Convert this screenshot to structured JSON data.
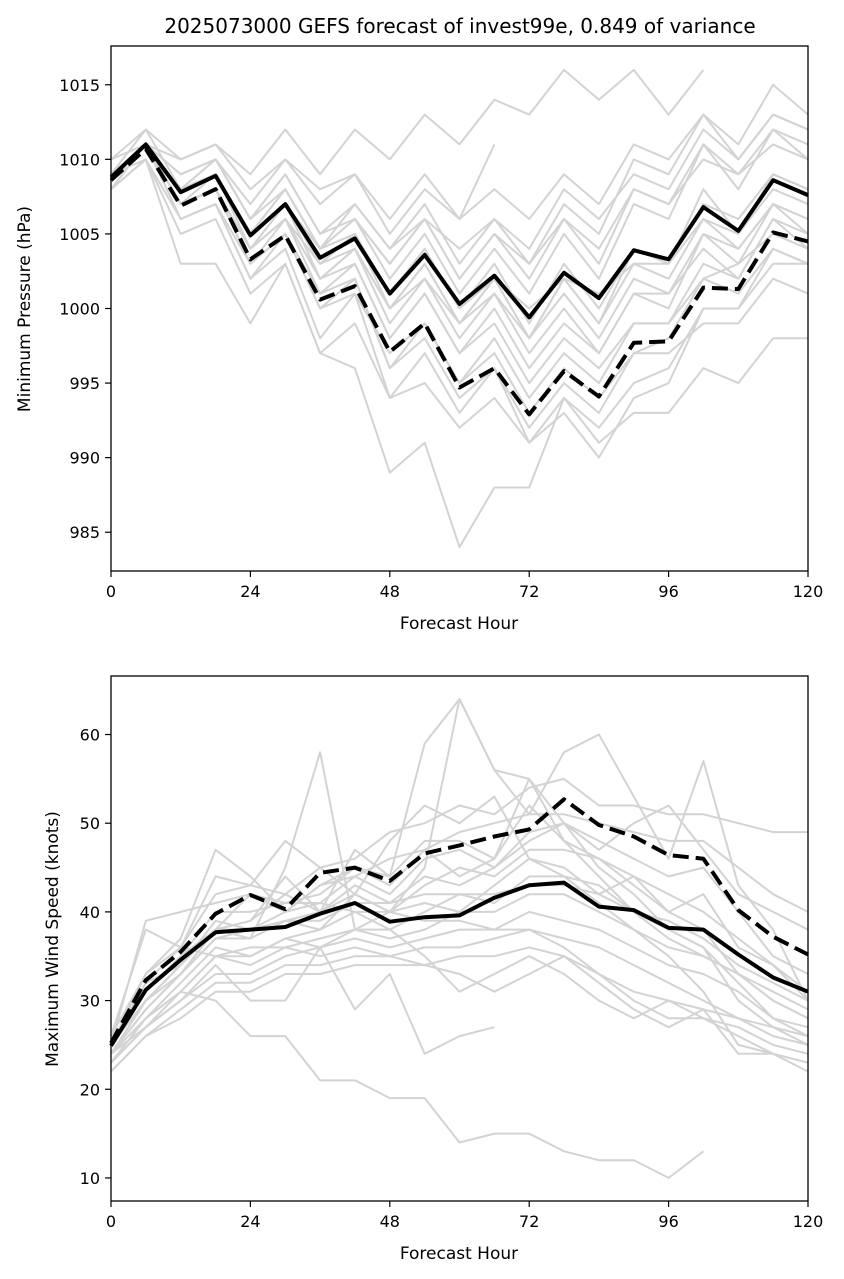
{
  "title": "2025073000 GEFS forecast of invest99e, 0.849 of variance",
  "chart_data": [
    {
      "type": "line",
      "id": "pressure",
      "xlabel": "Forecast Hour",
      "ylabel": "Minimum Pressure (hPa)",
      "xlim": [
        0,
        120
      ],
      "ylim": [
        982.4,
        1017.6
      ],
      "xticks": [
        0,
        24,
        48,
        72,
        96,
        120
      ],
      "yticks": [
        985,
        990,
        995,
        1000,
        1005,
        1010,
        1015
      ],
      "grid": false,
      "x": [
        0,
        6,
        12,
        18,
        24,
        30,
        36,
        42,
        48,
        54,
        60,
        66,
        72,
        78,
        84,
        90,
        96,
        102,
        108,
        114,
        120
      ],
      "ensemble_color": "#d3d3d3",
      "members": [
        [
          1010,
          1012,
          1010,
          1011,
          1009,
          1012,
          1009,
          1012,
          1010,
          1013,
          1011,
          1014,
          1013,
          1016,
          1014,
          1016,
          1013,
          1016
        ],
        [
          1009,
          1011,
          1009,
          1010,
          1007,
          1010,
          1007,
          1009,
          1006,
          1009,
          1006,
          1011
        ],
        [
          1010,
          1011,
          1010,
          1011,
          1008,
          1010,
          1008,
          1009,
          1005,
          1008,
          1006,
          1008,
          1006,
          1009,
          1007,
          1011,
          1010,
          1013,
          1011,
          1015,
          1013
        ],
        [
          1009,
          1012,
          1008,
          1010,
          1006,
          1009,
          1005,
          1006,
          1003,
          1006,
          1002,
          1005,
          1003,
          1007,
          1005,
          1010,
          1009,
          1013,
          1010,
          1013,
          1012
        ],
        [
          1009,
          1011,
          1008,
          1009,
          1005,
          1008,
          1004,
          1006,
          1002,
          1005,
          1001,
          1004,
          1001,
          1005,
          1002,
          1007,
          1006,
          1011,
          1008,
          1012,
          1010
        ],
        [
          1009,
          1011,
          1007,
          1008,
          1004,
          1007,
          1002,
          1004,
          1000,
          1003,
          999,
          1002,
          998,
          1002,
          999,
          1004,
          1003,
          1008,
          1005,
          1009,
          1008
        ],
        [
          1009,
          1011,
          1007,
          1008,
          1003,
          1006,
          1001,
          1003,
          998,
          1001,
          997,
          1000,
          996,
          999,
          997,
          1001,
          1000,
          1005,
          1003,
          1007,
          1005
        ],
        [
          1008,
          1011,
          1006,
          1007,
          1002,
          1005,
          1000,
          1002,
          996,
          999,
          995,
          998,
          994,
          997,
          995,
          999,
          999,
          1003,
          1002,
          1006,
          1004
        ],
        [
          1008,
          1010,
          1006,
          1007,
          1002,
          1004,
          998,
          1001,
          994,
          997,
          993,
          996,
          992,
          995,
          993,
          997,
          998,
          1002,
          1003,
          1005,
          1004
        ],
        [
          1008,
          1010,
          1005,
          1006,
          1001,
          1003,
          997,
          999,
          994,
          995,
          992,
          994,
          991,
          993,
          990,
          994,
          995,
          1000,
          1000,
          1004,
          1003
        ],
        [
          1009,
          1010,
          1003,
          1003,
          999,
          1003,
          997,
          996,
          989,
          991,
          984,
          988,
          988,
          994,
          991,
          993,
          993,
          996,
          995,
          998,
          998
        ],
        [
          1009,
          1011,
          1008,
          1009,
          1004,
          1007,
          1003,
          1005,
          1001,
          1004,
          1000,
          1003,
          999,
          1003,
          1000,
          1004,
          1003,
          1006,
          1004,
          1007,
          1006
        ],
        [
          1009,
          1011,
          1008,
          1009,
          1005,
          1007,
          1004,
          1005,
          1001,
          1004,
          1000,
          1002,
          1000,
          1002,
          1001,
          1003,
          1003,
          1007,
          1006,
          1009,
          1008
        ],
        [
          1009,
          1011,
          1007,
          1008,
          1004,
          1006,
          1002,
          1004,
          999,
          1002,
          998,
          1001,
          997,
          1000,
          997,
          1001,
          1001,
          1004,
          1002,
          1006,
          1005
        ],
        [
          1009,
          1011,
          1007,
          1008,
          1004,
          1006,
          1002,
          1003,
          998,
          1001,
          997,
          999,
          995,
          998,
          996,
          999,
          999,
          1002,
          1001,
          1004,
          1003
        ],
        [
          1008,
          1011,
          1006,
          1007,
          1003,
          1005,
          1000,
          1001,
          997,
          999,
          995,
          997,
          993,
          996,
          994,
          997,
          997,
          999,
          999,
          1002,
          1001
        ],
        [
          1009,
          1011,
          1007,
          1008,
          1003,
          1005,
          1001,
          1002,
          996,
          998,
          994,
          996,
          991,
          994,
          992,
          995,
          996,
          1000,
          1000,
          1003,
          1003
        ],
        [
          1009,
          1011,
          1008,
          1009,
          1005,
          1008,
          1004,
          1006,
          1003,
          1006,
          1002,
          1005,
          1002,
          1006,
          1003,
          1008,
          1007,
          1011,
          1009,
          1012,
          1011
        ],
        [
          1009,
          1011,
          1008,
          1010,
          1006,
          1009,
          1005,
          1007,
          1004,
          1007,
          1003,
          1006,
          1004,
          1008,
          1006,
          1009,
          1008,
          1012,
          1010,
          1013,
          1012
        ],
        [
          1009,
          1011,
          1009,
          1010,
          1006,
          1008,
          1004,
          1007,
          1004,
          1006,
          1004,
          1006,
          1003,
          1006,
          1004,
          1008,
          1007,
          1010,
          1009,
          1011,
          1010
        ],
        [
          1009,
          1011,
          1007,
          1008,
          1004,
          1006,
          1003,
          1004,
          1000,
          1002,
          999,
          1001,
          998,
          1001,
          998,
          1002,
          1001,
          1005,
          1004,
          1007,
          1006
        ],
        [
          1009,
          1011,
          1007,
          1009,
          1005,
          1007,
          1003,
          1005,
          1000,
          1003,
          999,
          1002,
          998,
          1002,
          999,
          1003,
          1002,
          1006,
          1005,
          1008,
          1007
        ]
      ],
      "series": [
        {
          "style": "solid",
          "values": [
            1008.8,
            1011.0,
            1007.8,
            1008.9,
            1004.9,
            1007.0,
            1003.4,
            1004.7,
            1001.0,
            1003.6,
            1000.3,
            1002.2,
            999.4,
            1002.4,
            1000.7,
            1003.9,
            1003.3,
            1006.8,
            1005.2,
            1008.6,
            1007.6
          ]
        },
        {
          "style": "dashed",
          "values": [
            1008.6,
            1010.7,
            1006.9,
            1008.0,
            1003.3,
            1004.9,
            1000.6,
            1001.5,
            997.1,
            999.0,
            994.7,
            996.0,
            992.9,
            995.8,
            994.1,
            997.7,
            997.8,
            1001.4,
            1001.3,
            1005.1,
            1004.5
          ]
        }
      ]
    },
    {
      "type": "line",
      "id": "wind",
      "xlabel": "Forecast Hour",
      "ylabel": "Maximum Wind Speed (knots)",
      "xlim": [
        0,
        120
      ],
      "ylim": [
        7.4,
        66.6
      ],
      "xticks": [
        0,
        24,
        48,
        72,
        96,
        120
      ],
      "yticks": [
        10,
        20,
        30,
        40,
        50,
        60
      ],
      "grid": false,
      "x": [
        0,
        6,
        12,
        18,
        24,
        30,
        36,
        42,
        48,
        54,
        60,
        66,
        72,
        78,
        84,
        90,
        96,
        102,
        108,
        114,
        120
      ],
      "ensemble_color": "#d3d3d3",
      "members": [
        [
          23,
          28,
          31,
          30,
          26,
          26,
          21,
          21,
          19,
          19,
          14,
          15,
          15,
          13,
          12,
          12,
          10,
          13
        ],
        [
          24,
          27,
          30,
          34,
          30,
          30,
          36,
          29,
          33,
          24,
          26,
          27
        ],
        [
          25,
          32,
          34,
          38,
          37,
          45,
          58,
          38,
          40,
          45,
          64,
          56,
          55,
          48,
          44,
          40,
          38,
          36,
          32,
          28,
          26
        ],
        [
          25,
          30,
          33,
          38,
          39,
          44,
          40,
          47,
          44,
          59,
          64,
          56,
          51,
          58,
          60,
          53,
          46,
          57,
          43,
          38,
          30
        ],
        [
          26,
          33,
          36,
          44,
          43,
          48,
          45,
          42,
          48,
          52,
          50,
          53,
          46,
          45,
          42,
          44,
          40,
          38,
          33,
          30,
          28
        ],
        [
          25,
          31,
          35,
          40,
          40,
          41,
          42,
          45,
          44,
          48,
          48,
          46,
          52,
          48,
          46,
          43,
          40,
          42,
          36,
          34,
          30
        ],
        [
          24,
          30,
          34,
          39,
          38,
          40,
          41,
          44,
          42,
          46,
          47,
          45,
          49,
          50,
          48,
          46,
          44,
          45,
          40,
          35,
          33
        ],
        [
          24,
          29,
          33,
          37,
          37,
          39,
          40,
          42,
          40,
          43,
          45,
          44,
          47,
          47,
          46,
          44,
          42,
          40,
          37,
          34,
          31
        ],
        [
          24,
          28,
          32,
          36,
          35,
          37,
          38,
          40,
          38,
          40,
          42,
          41,
          44,
          44,
          43,
          40,
          39,
          37,
          34,
          32,
          30
        ],
        [
          23,
          27,
          31,
          35,
          34,
          36,
          37,
          38,
          37,
          38,
          40,
          40,
          42,
          42,
          40,
          38,
          36,
          35,
          33,
          30,
          28
        ],
        [
          23,
          27,
          30,
          33,
          33,
          35,
          36,
          37,
          36,
          37,
          38,
          38,
          40,
          39,
          38,
          36,
          34,
          33,
          31,
          28,
          27
        ],
        [
          22,
          26,
          29,
          32,
          32,
          34,
          34,
          35,
          35,
          36,
          36,
          37,
          38,
          37,
          36,
          34,
          32,
          30,
          28,
          26,
          25
        ],
        [
          22,
          26,
          28,
          31,
          31,
          33,
          33,
          34,
          34,
          34,
          35,
          35,
          36,
          35,
          33,
          31,
          30,
          28,
          27,
          25,
          24
        ],
        [
          23,
          28,
          31,
          35,
          35,
          37,
          36,
          38,
          38,
          35,
          31,
          33,
          35,
          33,
          30,
          28,
          30,
          29,
          28,
          27,
          26
        ],
        [
          24,
          30,
          33,
          38,
          39,
          42,
          40,
          43,
          41,
          44,
          43,
          45,
          48,
          50,
          45,
          42,
          38,
          36,
          30,
          27,
          25
        ],
        [
          25,
          31,
          35,
          38,
          42,
          40,
          43,
          44,
          46,
          47,
          49,
          50,
          51,
          51,
          50,
          49,
          48,
          48,
          45,
          42,
          40
        ],
        [
          25,
          32,
          36,
          42,
          43,
          42,
          45,
          46,
          49,
          50,
          52,
          51,
          54,
          55,
          52,
          52,
          51,
          51,
          50,
          49,
          49
        ],
        [
          25,
          33,
          37,
          47,
          44,
          40,
          43,
          45,
          43,
          47,
          44,
          46,
          55,
          50,
          47,
          50,
          52,
          47,
          42,
          40,
          38
        ],
        [
          24,
          29,
          33,
          37,
          38,
          39,
          38,
          42,
          40,
          41,
          40,
          43,
          46,
          44,
          41,
          38,
          35,
          31,
          25,
          24,
          22
        ],
        [
          24,
          30,
          34,
          38,
          38,
          39,
          39,
          41,
          41,
          42,
          42,
          42,
          43,
          43,
          42,
          40,
          37,
          35,
          33,
          31,
          29
        ],
        [
          25,
          39,
          40,
          41,
          42,
          41,
          41,
          40,
          40,
          39,
          39,
          38,
          38,
          36,
          33,
          30,
          28,
          28,
          26,
          24,
          23
        ],
        [
          26,
          38,
          36,
          35,
          36,
          36,
          35,
          36,
          35,
          34,
          33,
          31,
          33,
          35,
          32,
          29,
          27,
          29,
          24,
          24,
          23
        ]
      ],
      "series": [
        {
          "style": "solid",
          "values": [
            24.9,
            31.2,
            34.6,
            37.7,
            38.0,
            38.3,
            39.8,
            41.0,
            38.9,
            39.4,
            39.6,
            41.6,
            43.0,
            43.3,
            40.6,
            40.2,
            38.2,
            38.0,
            35.2,
            32.6,
            31.0
          ]
        },
        {
          "style": "dashed",
          "values": [
            25.2,
            32.3,
            35.5,
            39.8,
            41.9,
            40.3,
            44.4,
            45.0,
            43.5,
            46.6,
            47.5,
            48.5,
            49.3,
            52.7,
            49.8,
            48.5,
            46.4,
            46.0,
            40.2,
            37.2,
            35.2
          ]
        }
      ]
    }
  ]
}
